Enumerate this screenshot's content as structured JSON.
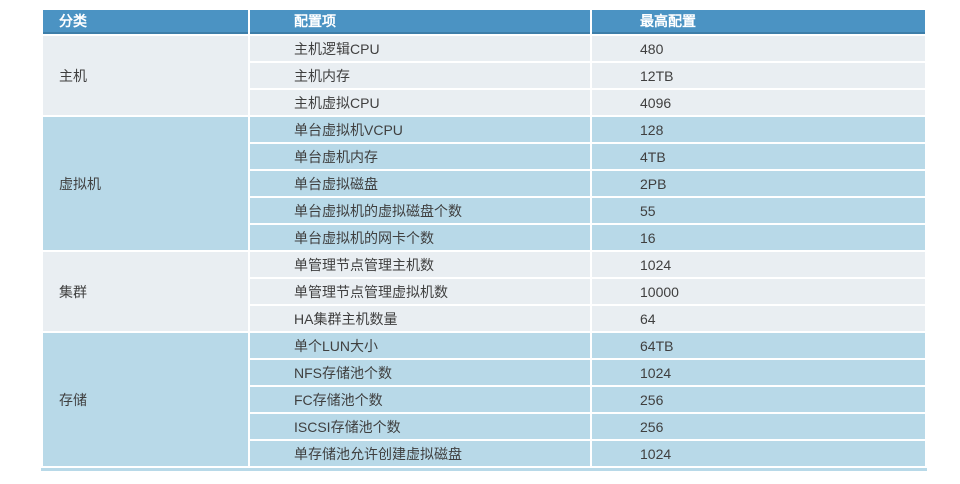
{
  "table": {
    "headers": [
      "分类",
      "配置项",
      "最高配置"
    ],
    "sections": [
      {
        "category": "主机",
        "rows": [
          {
            "item": "主机逻辑CPU",
            "value": "480"
          },
          {
            "item": "主机内存",
            "value": "12TB"
          },
          {
            "item": "主机虚拟CPU",
            "value": "4096"
          }
        ]
      },
      {
        "category": "虚拟机",
        "rows": [
          {
            "item": "单台虚拟机VCPU",
            "value": "128"
          },
          {
            "item": "单台虚机内存",
            "value": "4TB"
          },
          {
            "item": "单台虚拟磁盘",
            "value": "2PB"
          },
          {
            "item": "单台虚拟机的虚拟磁盘个数",
            "value": "55"
          },
          {
            "item": "单台虚拟机的网卡个数",
            "value": "16"
          }
        ]
      },
      {
        "category": "集群",
        "rows": [
          {
            "item": "单管理节点管理主机数",
            "value": "1024"
          },
          {
            "item": "单管理节点管理虚拟机数",
            "value": "10000"
          },
          {
            "item": "HA集群主机数量",
            "value": "64"
          }
        ]
      },
      {
        "category": "存储",
        "rows": [
          {
            "item": "单个LUN大小",
            "value": "64TB"
          },
          {
            "item": "NFS存储池个数",
            "value": "1024"
          },
          {
            "item": "FC存储池个数",
            "value": "256"
          },
          {
            "item": "ISCSI存储池个数",
            "value": "256"
          },
          {
            "item": "单存储池允许创建虚拟磁盘",
            "value": "1024"
          }
        ]
      }
    ],
    "colors": {
      "header_bg": "#4b93c3",
      "header_border": "#3d7ea9",
      "header_text": "#ffffff",
      "section_gray": "#e9eef2",
      "section_blue": "#b8d9e8",
      "text": "#3f3f3f"
    }
  }
}
